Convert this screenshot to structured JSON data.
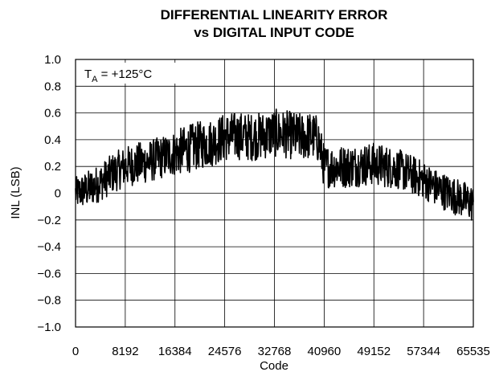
{
  "chart_data": {
    "type": "line",
    "title": "DIFFERENTIAL LINEARITY ERROR",
    "subtitle": "vs DIGITAL INPUT CODE",
    "xlabel": "Code",
    "ylabel": "INL (LSB)",
    "xlim": [
      0,
      65535
    ],
    "ylim": [
      -1.0,
      1.0
    ],
    "x_ticks": [
      0,
      8192,
      16384,
      24576,
      32768,
      40960,
      49152,
      57344,
      65535
    ],
    "x_tick_labels": [
      "0",
      "8192",
      "16384",
      "24576",
      "32768",
      "40960",
      "49152",
      "57344",
      "65535"
    ],
    "y_ticks": [
      1.0,
      0.8,
      0.6,
      0.4,
      0.2,
      0,
      -0.2,
      -0.4,
      -0.6,
      -0.8,
      -1.0
    ],
    "y_tick_labels": [
      "1.0",
      "0.8",
      "0.6",
      "0.4",
      "0.2",
      "0",
      "−0.2",
      "−0.4",
      "−0.6",
      "−0.8",
      "−1.0"
    ],
    "grid": true,
    "line_color": "#000000",
    "annotation": {
      "base": "T",
      "subscript": "A",
      "text": " = +125°C"
    },
    "series": [
      {
        "x": [
          0,
          2048,
          4096,
          6144,
          8192,
          10240,
          12288,
          14336,
          16384,
          18432,
          20480,
          22528,
          24576,
          26624,
          28672,
          30720,
          32768,
          34816,
          36864,
          38912,
          40000,
          40960,
          43008,
          45056,
          47104,
          49152,
          51200,
          53248,
          55296,
          57344,
          59392,
          61440,
          63488,
          65535
        ],
        "y": [
          0.0,
          0.03,
          0.08,
          0.15,
          0.2,
          0.22,
          0.24,
          0.27,
          0.3,
          0.33,
          0.36,
          0.38,
          0.42,
          0.43,
          0.42,
          0.43,
          0.45,
          0.44,
          0.42,
          0.43,
          0.4,
          0.2,
          0.2,
          0.2,
          0.21,
          0.22,
          0.2,
          0.18,
          0.14,
          0.1,
          0.04,
          0.0,
          -0.04,
          -0.08
        ],
        "noise_amplitude": [
          0.12,
          0.14,
          0.14,
          0.15,
          0.15,
          0.16,
          0.16,
          0.16,
          0.17,
          0.18,
          0.18,
          0.18,
          0.18,
          0.18,
          0.18,
          0.18,
          0.18,
          0.18,
          0.18,
          0.18,
          0.18,
          0.16,
          0.16,
          0.16,
          0.16,
          0.16,
          0.16,
          0.15,
          0.15,
          0.14,
          0.14,
          0.14,
          0.14,
          0.14
        ]
      }
    ]
  }
}
